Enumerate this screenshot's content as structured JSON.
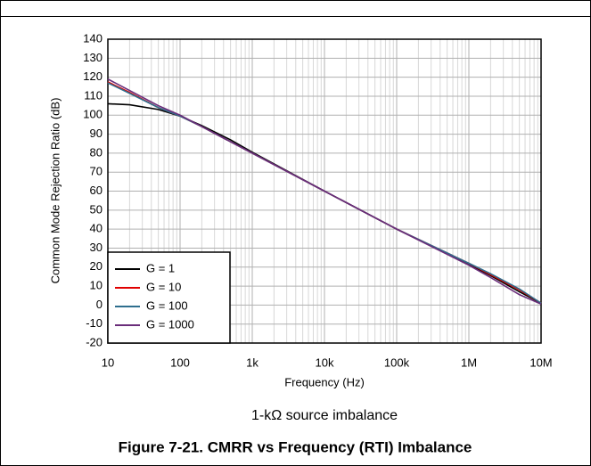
{
  "chart_data": {
    "type": "line",
    "xlabel": "Frequency (Hz)",
    "ylabel": "Common Mode Rejection Ratio (dB)",
    "caption": "1-kΩ source imbalance",
    "figure_title": "Figure 7-21. CMRR vs Frequency (RTI) Imbalance",
    "xscale": "log",
    "grid": true,
    "legend_loc": "lower left",
    "xlim": [
      10,
      10000000
    ],
    "ylim": [
      -20,
      140
    ],
    "xticks": [
      10,
      100,
      {
        "value": 1000,
        "label": "1k"
      },
      {
        "value": 10000,
        "label": "10k"
      },
      {
        "value": 100000,
        "label": "100k"
      },
      {
        "value": 1000000,
        "label": "1M"
      },
      {
        "value": 10000000,
        "label": "10M"
      }
    ],
    "yticks": [
      -20,
      -10,
      0,
      10,
      20,
      30,
      40,
      50,
      60,
      70,
      80,
      90,
      100,
      110,
      120,
      130,
      140
    ],
    "x": [
      10,
      20,
      50,
      100,
      200,
      500,
      1000,
      10000,
      100000,
      1000000,
      2000000,
      5000000,
      10000000
    ],
    "series": [
      {
        "name": "G = 1",
        "color": "#000000",
        "values": [
          106,
          105.5,
          103,
          99.5,
          94.5,
          87,
          80.5,
          60,
          40,
          21.5,
          15.5,
          7,
          1
        ]
      },
      {
        "name": "G = 10",
        "color": "#e00000",
        "values": [
          117.5,
          112,
          104,
          99.5,
          94,
          86,
          80,
          60,
          40,
          22,
          16,
          8,
          1
        ]
      },
      {
        "name": "G = 100",
        "color": "#2e6e8e",
        "values": [
          117,
          111.5,
          104,
          99.5,
          94,
          86,
          80,
          60,
          40,
          22,
          16.5,
          8.5,
          1
        ]
      },
      {
        "name": "G = 1000",
        "color": "#6a2d7a",
        "values": [
          119,
          113,
          105,
          100,
          94,
          86,
          80,
          60,
          40,
          21,
          14.5,
          5.5,
          0.5
        ]
      }
    ]
  }
}
